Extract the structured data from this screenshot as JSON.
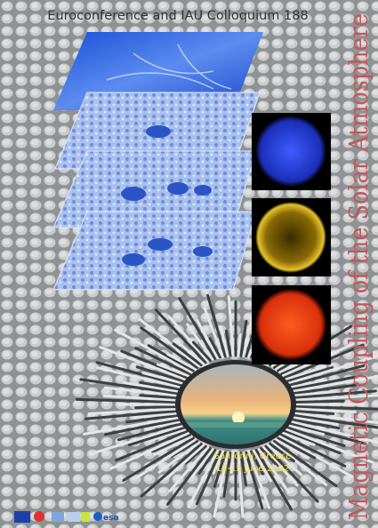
{
  "header": {
    "title": "Euroconference and IAU Colloquium 188"
  },
  "side_title": "Magnetic Coupling of the Solar Atmosphere",
  "venue": {
    "place": "Santorini, Greece",
    "dates": "11-15 June 2002"
  },
  "footer": {
    "logo_text": "esa"
  }
}
